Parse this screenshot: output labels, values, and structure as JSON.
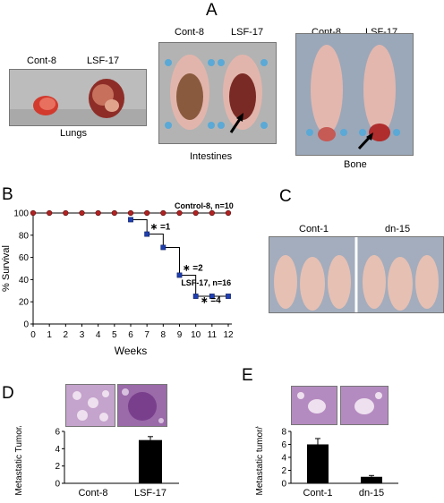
{
  "panelA": {
    "letter": "A",
    "lungs": {
      "left_label": "Cont-8",
      "right_label": "LSF-17",
      "caption": "Lungs"
    },
    "intestines": {
      "left_label": "Cont-8",
      "right_label": "LSF-17",
      "caption": "Intestines"
    },
    "bone": {
      "left_label": "Cont-8",
      "right_label": "LSF-17",
      "caption": "Bone"
    }
  },
  "panelB": {
    "letter": "B",
    "chart_data": {
      "type": "line",
      "xlabel": "Weeks",
      "ylabel": "% Survival",
      "xlim": [
        0,
        12
      ],
      "ylim": [
        0,
        100
      ],
      "x_ticks": [
        "0",
        "1",
        "2",
        "3",
        "4",
        "5",
        "6",
        "7",
        "8",
        "9",
        "10",
        "11",
        "12"
      ],
      "y_ticks": [
        "0",
        "20",
        "40",
        "60",
        "80",
        "100"
      ],
      "series": [
        {
          "name": "Control-8, n=10",
          "color": "#b22222",
          "marker": "circle",
          "x": [
            0,
            1,
            2,
            3,
            4,
            5,
            6,
            7,
            8,
            9,
            10,
            11,
            12
          ],
          "y": [
            100,
            100,
            100,
            100,
            100,
            100,
            100,
            100,
            100,
            100,
            100,
            100,
            100
          ]
        },
        {
          "name": "LSF-17, n=16",
          "color": "#1f3fb0",
          "marker": "square",
          "x": [
            6,
            7,
            8,
            9,
            10,
            11,
            12
          ],
          "y": [
            94,
            81,
            69,
            44,
            25,
            25,
            25
          ]
        }
      ],
      "annotations": [
        {
          "text": "∗ =1",
          "x": 7.2,
          "y": 85
        },
        {
          "text": "∗ =2",
          "x": 9.2,
          "y": 48
        },
        {
          "text": "∗ =4",
          "x": 10.3,
          "y": 19
        }
      ]
    }
  },
  "panelC": {
    "letter": "C",
    "left_label": "Cont-1",
    "right_label": "dn-15"
  },
  "panelD": {
    "letter": "D",
    "chart_data": {
      "type": "bar",
      "categories": [
        "Cont-8",
        "LSF-17"
      ],
      "values": [
        0,
        5.0
      ],
      "errors": [
        0,
        0.4
      ],
      "ylabel": "Metastatic Tumor/Field",
      "ylim": [
        0,
        6
      ],
      "y_ticks": [
        "0",
        "2",
        "4",
        "6"
      ]
    }
  },
  "panelE": {
    "letter": "E",
    "chart_data": {
      "type": "bar",
      "categories": [
        "Cont-1",
        "dn-15"
      ],
      "values": [
        6.0,
        1.0
      ],
      "errors": [
        0.9,
        0.2
      ],
      "ylabel": "Metastatic tumor/field",
      "ylim": [
        0,
        8
      ],
      "y_ticks": [
        "0",
        "2",
        "4",
        "6",
        "8"
      ]
    }
  },
  "colors": {
    "photo_bg_grey": "#b9b9b9",
    "photo_bg_blue": "#9aa8ba",
    "tissue_pink": "#d9a3a0",
    "histology_purple": "#a87fb8",
    "tumor_red": "#b8483f",
    "bar_fill": "#000000"
  }
}
